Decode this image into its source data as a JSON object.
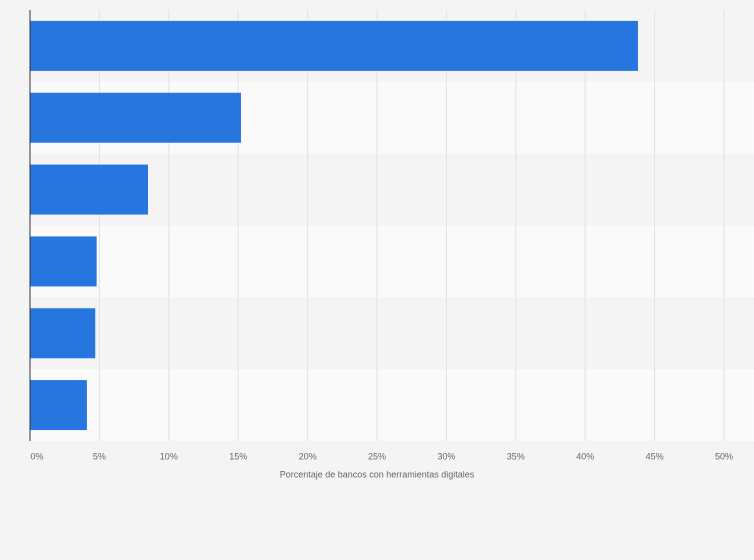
{
  "chart_data": {
    "type": "bar",
    "orientation": "horizontal",
    "categories": [
      null,
      null,
      null,
      null,
      null,
      null
    ],
    "values": [
      43.8,
      15.2,
      8.5,
      4.8,
      4.7,
      4.1
    ],
    "color": "#2775de",
    "xlabel": "Porcentaje de bancos con herramientas digitales",
    "xlim": [
      0,
      50
    ],
    "xticks": [
      {
        "value": 0,
        "label": "0%"
      },
      {
        "value": 5,
        "label": "5%"
      },
      {
        "value": 10,
        "label": "10%"
      },
      {
        "value": 15,
        "label": "15%"
      },
      {
        "value": 20,
        "label": "20%"
      },
      {
        "value": 25,
        "label": "25%"
      },
      {
        "value": 30,
        "label": "30%"
      },
      {
        "value": 35,
        "label": "35%"
      },
      {
        "value": 40,
        "label": "40%"
      },
      {
        "value": 45,
        "label": "45%"
      },
      {
        "value": 50,
        "label": "50%"
      }
    ],
    "grid": true
  }
}
